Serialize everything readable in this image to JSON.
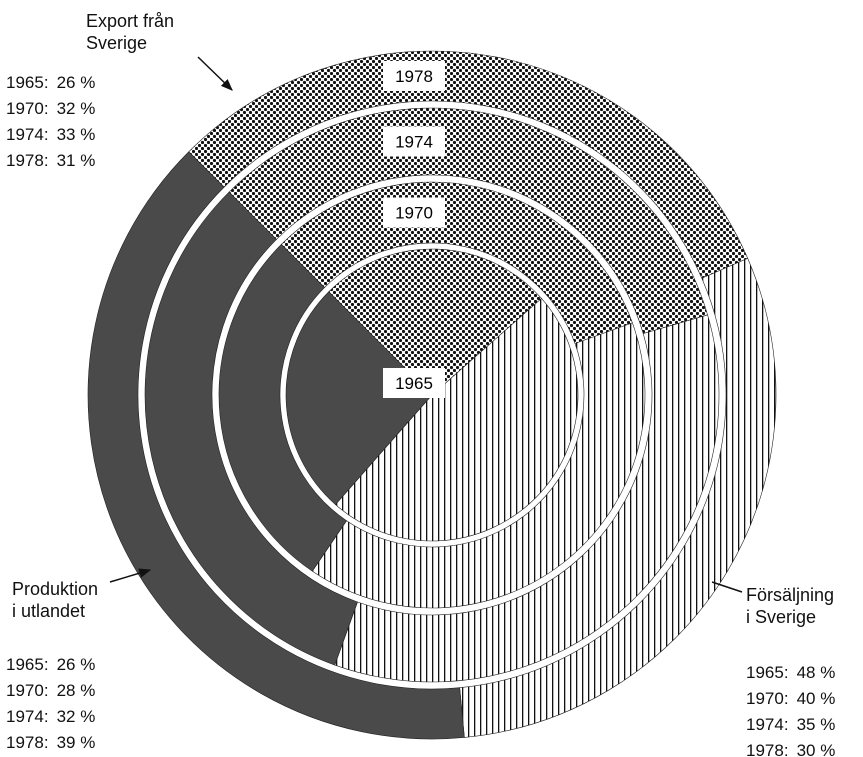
{
  "chart_data": {
    "type": "pie",
    "categories": [
      "Export från\nSverige",
      "Försäljning\ni Sverige",
      "Produktion\ni utlandet"
    ],
    "series": [
      {
        "name": "1965",
        "values": [
          26,
          48,
          26
        ],
        "value_labels": [
          "26 %",
          "48 %",
          "26 %"
        ]
      },
      {
        "name": "1970",
        "values": [
          32,
          40,
          28
        ],
        "value_labels": [
          "32 %",
          "40 %",
          "28 %"
        ]
      },
      {
        "name": "1974",
        "values": [
          33,
          35,
          32
        ],
        "value_labels": [
          "33 %",
          "35 %",
          "32 %"
        ]
      },
      {
        "name": "1978",
        "values": [
          31,
          30,
          39
        ],
        "value_labels": [
          "31 %",
          "30 %",
          "39 %"
        ]
      }
    ]
  }
}
